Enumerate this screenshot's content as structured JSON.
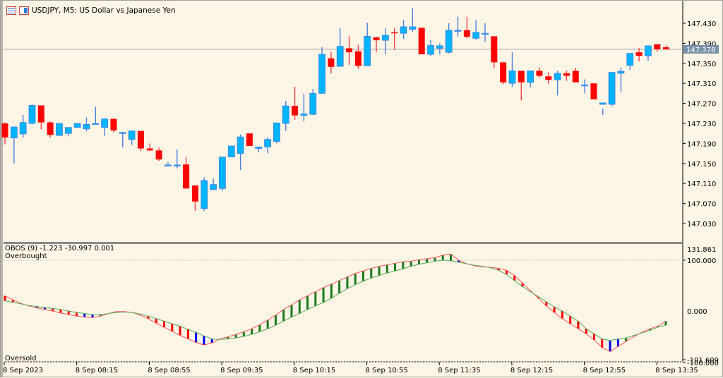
{
  "window": {
    "title": "USDJPY, M5:  US Dollar vs Japanese Yen",
    "icons": [
      "chart-grid-icon",
      "chart-template-icon"
    ]
  },
  "colors": {
    "background": "#fdf5e6",
    "bull_body": "#00b4ff",
    "bull_wick": "#4a7fe0",
    "bear_body": "#ff0000",
    "bear_wick": "#ff4040",
    "doji": "#33dd33",
    "current_price_line": "#a0a8b0",
    "price_tag_bg": "#7890a8",
    "osc_green": "#1a7a1a",
    "osc_red": "#ff0000",
    "osc_blue": "#0000ee",
    "osc_line_up": "#ff5555",
    "osc_line_down": "#55aa55"
  },
  "price_axis": {
    "ticks": [
      "147.430",
      "147.390",
      "147.350",
      "147.310",
      "147.270",
      "147.230",
      "147.190",
      "147.150",
      "147.110",
      "147.070",
      "147.030"
    ],
    "current_price": "147.378"
  },
  "indicator": {
    "header": "OBOS (9) -1.223 -30.997 0.001",
    "overbought_label": "Overbought",
    "oversold_label": "Oversold",
    "axis_ticks": [
      "131.861",
      "100.000",
      "0.000",
      "-101.609",
      "-100.000"
    ]
  },
  "time_axis": {
    "labels": [
      "8 Sep 2023",
      "8 Sep 08:15",
      "8 Sep 08:55",
      "8 Sep 09:35",
      "8 Sep 10:15",
      "8 Sep 10:55",
      "8 Sep 11:35",
      "8 Sep 12:15",
      "8 Sep 12:55",
      "8 Sep 13:35"
    ]
  },
  "chart_data": [
    {
      "type": "candlestick",
      "title": "USDJPY, M5:  US Dollar vs Japanese Yen",
      "xlabel": "",
      "ylabel": "Price",
      "ylim": [
        147.0,
        147.46
      ],
      "grid": false,
      "current_price": 147.378,
      "x_tick_labels": [
        "8 Sep 2023",
        "8 Sep 08:15",
        "8 Sep 08:55",
        "8 Sep 09:35",
        "8 Sep 10:15",
        "8 Sep 10:55",
        "8 Sep 11:35",
        "8 Sep 12:15",
        "8 Sep 12:55",
        "8 Sep 13:35"
      ],
      "ohlc": [
        [
          147.23,
          147.232,
          147.188,
          147.202
        ],
        [
          147.201,
          147.222,
          147.15,
          147.223
        ],
        [
          147.209,
          147.247,
          147.202,
          147.232
        ],
        [
          147.23,
          147.268,
          147.228,
          147.266
        ],
        [
          147.266,
          147.266,
          147.218,
          147.232
        ],
        [
          147.232,
          147.234,
          147.202,
          147.207
        ],
        [
          147.206,
          147.216,
          147.205,
          147.23
        ],
        [
          147.21,
          147.218,
          147.204,
          147.222
        ],
        [
          147.222,
          147.23,
          147.22,
          147.23
        ],
        [
          147.219,
          147.242,
          147.214,
          147.228
        ],
        [
          147.228,
          147.263,
          147.228,
          147.23
        ],
        [
          147.222,
          147.24,
          147.205,
          147.239
        ],
        [
          147.239,
          147.24,
          147.212,
          147.216
        ],
        [
          147.212,
          147.213,
          147.182,
          147.212
        ],
        [
          147.198,
          147.214,
          147.187,
          147.215
        ],
        [
          147.215,
          147.215,
          147.175,
          147.18
        ],
        [
          147.18,
          147.19,
          147.175,
          147.176
        ],
        [
          147.176,
          147.182,
          147.155,
          147.158
        ],
        [
          147.147,
          147.153,
          147.145,
          147.147
        ],
        [
          147.147,
          147.178,
          147.14,
          147.147
        ],
        [
          147.148,
          147.163,
          147.1,
          147.1
        ],
        [
          147.106,
          147.107,
          147.055,
          147.074
        ],
        [
          147.06,
          147.122,
          147.055,
          147.116
        ],
        [
          147.098,
          147.12,
          147.097,
          147.108
        ],
        [
          147.1,
          147.158,
          147.095,
          147.163
        ],
        [
          147.163,
          147.18,
          147.163,
          147.185
        ],
        [
          147.17,
          147.208,
          147.137,
          147.203
        ],
        [
          147.21,
          147.208,
          147.191,
          147.185
        ],
        [
          147.18,
          147.182,
          147.172,
          147.183
        ],
        [
          147.183,
          147.202,
          147.17,
          147.198
        ],
        [
          147.194,
          147.224,
          147.19,
          147.231
        ],
        [
          147.23,
          147.275,
          147.215,
          147.265
        ],
        [
          147.265,
          147.303,
          147.237,
          147.246
        ],
        [
          147.246,
          147.289,
          147.234,
          147.249
        ],
        [
          147.248,
          147.299,
          147.247,
          147.29
        ],
        [
          147.29,
          147.382,
          147.29,
          147.368
        ],
        [
          147.36,
          147.373,
          147.33,
          147.343
        ],
        [
          147.344,
          147.42,
          147.343,
          147.384
        ],
        [
          147.38,
          147.405,
          147.347,
          147.372
        ],
        [
          147.374,
          147.387,
          147.339,
          147.345
        ],
        [
          147.345,
          147.431,
          147.345,
          147.404
        ],
        [
          147.402,
          147.396,
          147.372,
          147.396
        ],
        [
          147.396,
          147.42,
          147.368,
          147.406
        ],
        [
          147.412,
          147.42,
          147.377,
          147.41
        ],
        [
          147.41,
          147.437,
          147.399,
          147.423
        ],
        [
          147.418,
          147.46,
          147.413,
          147.423
        ],
        [
          147.421,
          147.416,
          147.37,
          147.368
        ],
        [
          147.368,
          147.397,
          147.365,
          147.386
        ],
        [
          147.38,
          147.39,
          147.368,
          147.385
        ],
        [
          147.372,
          147.43,
          147.37,
          147.416
        ],
        [
          147.416,
          147.443,
          147.403,
          147.416
        ],
        [
          147.416,
          147.443,
          147.4,
          147.403
        ],
        [
          147.4,
          147.436,
          147.397,
          147.412
        ],
        [
          147.41,
          147.43,
          147.393,
          147.41
        ],
        [
          147.404,
          147.404,
          147.34,
          147.352
        ],
        [
          147.352,
          147.353,
          147.308,
          147.312
        ],
        [
          147.31,
          147.372,
          147.303,
          147.335
        ],
        [
          147.335,
          147.335,
          147.276,
          147.312
        ],
        [
          147.312,
          147.33,
          147.302,
          147.335
        ],
        [
          147.335,
          147.342,
          147.321,
          147.325
        ],
        [
          147.324,
          147.332,
          147.309,
          147.317
        ],
        [
          147.317,
          147.335,
          147.286,
          147.33
        ],
        [
          147.33,
          147.335,
          147.315,
          147.325
        ],
        [
          147.335,
          147.341,
          147.312,
          147.312
        ],
        [
          147.305,
          147.318,
          147.29,
          147.307
        ],
        [
          147.31,
          147.31,
          147.282,
          147.278
        ],
        [
          147.268,
          147.26,
          147.247,
          147.271
        ],
        [
          147.268,
          147.331,
          147.264,
          147.332
        ],
        [
          147.33,
          147.341,
          147.292,
          147.334
        ],
        [
          147.346,
          147.368,
          147.336,
          147.37
        ],
        [
          147.372,
          147.381,
          147.354,
          147.365
        ],
        [
          147.365,
          147.383,
          147.355,
          147.385
        ],
        [
          147.388,
          147.383,
          147.373,
          147.378
        ],
        [
          147.382,
          147.386,
          147.377,
          147.378
        ]
      ]
    },
    {
      "type": "bar",
      "title": "OBOS (9) -1.223 -30.997 0.001",
      "ylim": [
        -101.609,
        131.861
      ],
      "reference_lines": [
        100,
        0,
        -100
      ],
      "annotations": [
        "Overbought",
        "Oversold"
      ],
      "series": [
        {
          "name": "line_a",
          "values": [
            30,
            22,
            15,
            10,
            6,
            3,
            0,
            -4,
            -7,
            -10,
            -12,
            -13,
            -10,
            -5,
            -1,
            -1,
            -3,
            -8,
            -15,
            -24,
            -32,
            -40,
            -48,
            -55,
            -62,
            -67,
            -63,
            -55,
            -51,
            -46,
            -41,
            -35,
            -27,
            -18,
            -8,
            3,
            12,
            22,
            30,
            38,
            46,
            53,
            60,
            67,
            74,
            79,
            84,
            88,
            91,
            94,
            97,
            98,
            101,
            103,
            105,
            110,
            112,
            100,
            93,
            89,
            87,
            86,
            84,
            80,
            70,
            55,
            40,
            25,
            10,
            -3,
            -15,
            -25,
            -35,
            -45,
            -57,
            -72,
            -80,
            -70,
            -60,
            -50,
            -42,
            -35,
            -30,
            -20
          ]
        },
        {
          "name": "line_b",
          "values": [
            20,
            17,
            14,
            11,
            9,
            7,
            5,
            3,
            0,
            -3,
            -5,
            -7,
            -7,
            -5,
            -3,
            -2,
            -3,
            -6,
            -10,
            -15,
            -20,
            -25,
            -30,
            -36,
            -42,
            -49,
            -55,
            -56,
            -55,
            -53,
            -50,
            -46,
            -41,
            -35,
            -28,
            -20,
            -12,
            -5,
            3,
            10,
            17,
            25,
            35,
            44,
            52,
            59,
            65,
            70,
            75,
            79,
            83,
            88,
            92,
            95,
            98,
            100,
            99,
            96,
            93,
            90,
            88,
            85,
            80,
            72,
            60,
            48,
            38,
            28,
            18,
            8,
            0,
            -10,
            -20,
            -35,
            -45,
            -55,
            -58,
            -55,
            -53,
            -48,
            -43,
            -38,
            -32,
            -28
          ]
        }
      ]
    }
  ]
}
